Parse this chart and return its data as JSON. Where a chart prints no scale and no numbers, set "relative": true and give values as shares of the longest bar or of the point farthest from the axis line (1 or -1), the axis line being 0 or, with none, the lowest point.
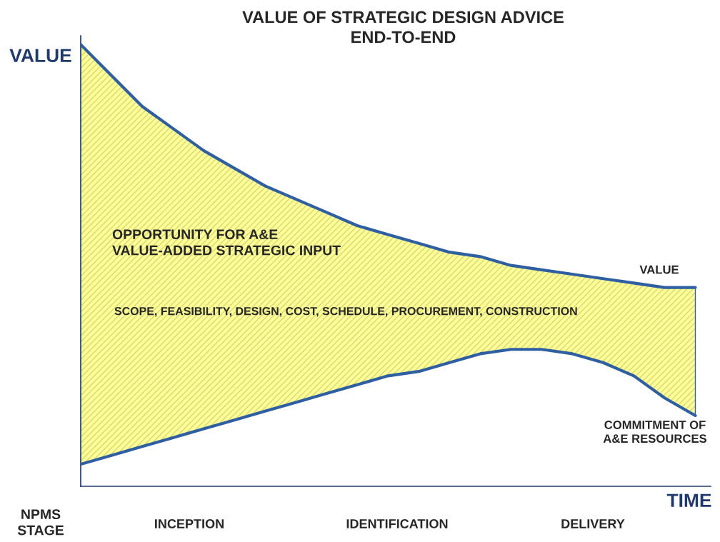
{
  "chart_data": {
    "type": "line",
    "title": "VALUE OF STRATEGIC DESIGN ADVICE\nEND-TO-END",
    "xlabel": "TIME",
    "ylabel": "VALUE",
    "relative": true,
    "categories": [
      null,
      null,
      null,
      null,
      null,
      null,
      null,
      null,
      null,
      null,
      null,
      null,
      null,
      null,
      null,
      null,
      null,
      null,
      null,
      null,
      null
    ],
    "series": [
      {
        "name": "VALUE",
        "color": "#2e5fa3",
        "values": [
          1.0,
          0.93,
          0.86,
          0.81,
          0.76,
          0.72,
          0.68,
          0.65,
          0.62,
          0.59,
          0.57,
          0.55,
          0.53,
          0.52,
          0.5,
          0.49,
          0.48,
          0.47,
          0.46,
          0.45,
          0.45
        ],
        "lower": [
          0.05,
          0.07,
          0.09,
          0.11,
          0.13,
          0.15,
          0.17,
          0.19,
          0.21,
          0.23,
          0.25,
          0.26,
          0.28,
          0.3,
          0.31,
          0.31,
          0.3,
          0.28,
          0.25,
          0.2,
          0.16
        ],
        "upper": [
          1.0,
          0.93,
          0.86,
          0.81,
          0.76,
          0.72,
          0.68,
          0.65,
          0.62,
          0.59,
          0.57,
          0.55,
          0.53,
          0.52,
          0.5,
          0.49,
          0.48,
          0.47,
          0.46,
          0.45,
          0.45
        ]
      },
      {
        "name": "COMMITMENT OF\nA&E RESOURCES",
        "color": "#2e5fa3",
        "values": [
          0.05,
          0.07,
          0.09,
          0.11,
          0.13,
          0.15,
          0.17,
          0.19,
          0.21,
          0.23,
          0.25,
          0.26,
          0.28,
          0.3,
          0.31,
          0.31,
          0.3,
          0.28,
          0.25,
          0.2,
          0.16
        ]
      }
    ],
    "annotations": [
      "OPPORTUNITY FOR A&E\nVALUE-ADDED STRATEGIC INPUT",
      "SCOPE, FEASIBILITY, DESIGN, COST, SCHEDULE, PROCUREMENT, CONSTRUCTION",
      "NPMS\nSTAGE",
      "INCEPTION",
      "IDENTIFICATION",
      "DELIVERY"
    ],
    "grid": false,
    "legend": false,
    "marker": "none",
    "line_style": "solid"
  }
}
